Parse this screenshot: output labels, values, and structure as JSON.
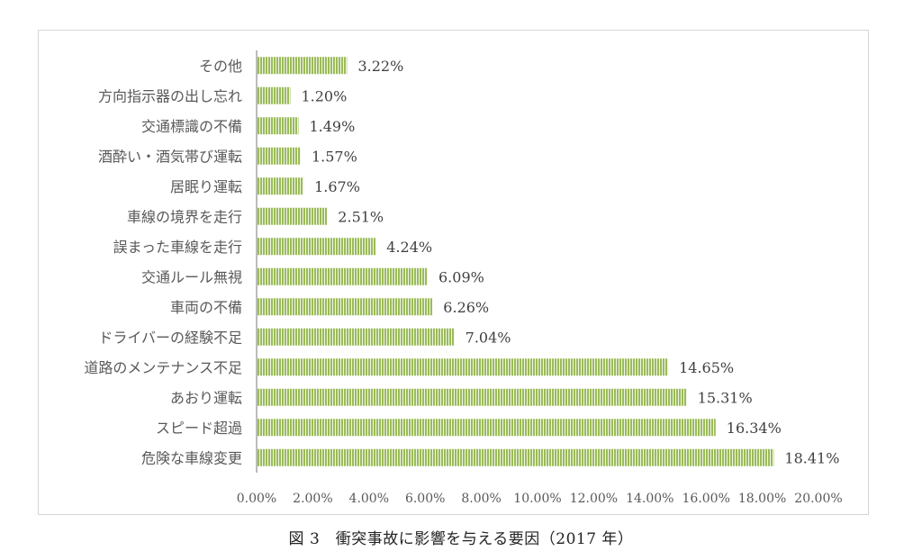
{
  "chart_data": {
    "type": "bar",
    "orientation": "horizontal",
    "categories": [
      "その他",
      "方向指示器の出し忘れ",
      "交通標識の不備",
      "酒酔い・酒気帯び運転",
      "居眠り運転",
      "車線の境界を走行",
      "誤まった車線を走行",
      "交通ルール無視",
      "車両の不備",
      "ドライバーの経験不足",
      "道路のメンテナンス不足",
      "あおり運転",
      "スピード超過",
      "危険な車線変更"
    ],
    "values": [
      3.22,
      1.2,
      1.49,
      1.57,
      1.67,
      2.51,
      4.24,
      6.09,
      6.26,
      7.04,
      14.65,
      15.31,
      16.34,
      18.41
    ],
    "value_labels": [
      "3.22%",
      "1.20%",
      "1.49%",
      "1.57%",
      "1.67%",
      "2.51%",
      "4.24%",
      "6.09%",
      "6.26%",
      "7.04%",
      "14.65%",
      "15.31%",
      "16.34%",
      "18.41%"
    ],
    "x_ticks": [
      "0.00%",
      "2.00%",
      "4.00%",
      "6.00%",
      "8.00%",
      "10.00%",
      "12.00%",
      "14.00%",
      "16.00%",
      "18.00%",
      "20.00%"
    ],
    "xlim": [
      0,
      20
    ],
    "title": "",
    "xlabel": "",
    "ylabel": "",
    "grid": false,
    "bar_color": "#9bbb59",
    "bar_stripe_color": "#ffffff"
  },
  "caption": "図 3　衝突事故に影響を与える要因（2017 年）"
}
